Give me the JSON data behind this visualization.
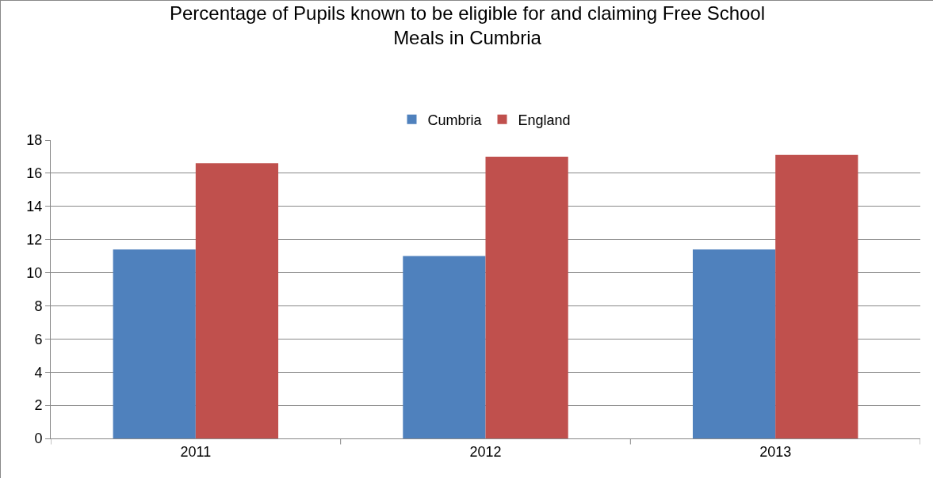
{
  "chart_data": {
    "type": "bar",
    "title": "Percentage of Pupils known to be eligible for and claiming Free School Meals in Cumbria",
    "categories": [
      "2011",
      "2012",
      "2013"
    ],
    "series": [
      {
        "name": "Cumbria",
        "color": "#4f81bd",
        "values": [
          11.4,
          11.0,
          11.4
        ]
      },
      {
        "name": "England",
        "color": "#c0504d",
        "values": [
          16.6,
          17.0,
          17.1
        ]
      }
    ],
    "ylim": [
      0,
      18
    ],
    "yticks": [
      0,
      2,
      4,
      6,
      8,
      10,
      12,
      14,
      16,
      18
    ],
    "grid": "y",
    "legend": "top"
  }
}
